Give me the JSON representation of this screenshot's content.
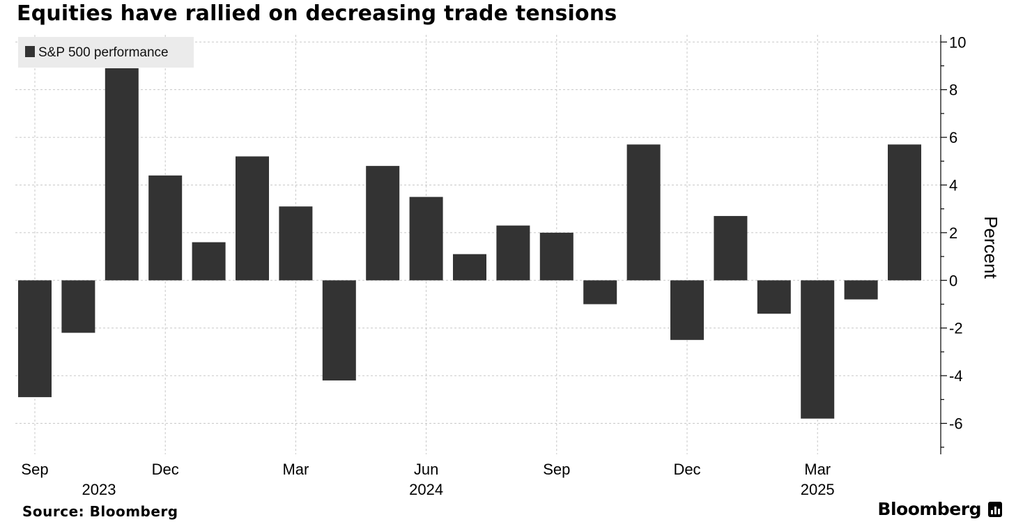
{
  "chart_data": {
    "type": "bar",
    "title": "Equities have rallied on decreasing trade tensions",
    "legend": {
      "label": "S&P 500 performance",
      "position": "top-left",
      "color": "#333333"
    },
    "ylabel": "Percent",
    "ylim": [
      -7.3,
      10.3
    ],
    "yticks": [
      10,
      8,
      6,
      4,
      2,
      0,
      -2,
      -4,
      -6
    ],
    "grid": true,
    "categories": [
      "Sep 2023",
      "Oct 2023",
      "Nov 2023",
      "Dec 2023",
      "Jan 2024",
      "Feb 2024",
      "Mar 2024",
      "Apr 2024",
      "May 2024",
      "Jun 2024",
      "Jul 2024",
      "Aug 2024",
      "Sep 2024",
      "Oct 2024",
      "Nov 2024",
      "Dec 2024",
      "Jan 2025",
      "Feb 2025",
      "Mar 2025",
      "Apr 2025",
      "May 2025"
    ],
    "values": [
      -4.9,
      -2.2,
      8.9,
      4.4,
      1.6,
      5.2,
      3.1,
      -4.2,
      4.8,
      3.5,
      1.1,
      2.3,
      2.0,
      -1.0,
      5.7,
      -2.5,
      2.7,
      -1.4,
      -5.8,
      -0.8,
      5.7
    ],
    "xticks": [
      {
        "index": 0,
        "label": "Sep",
        "year": "2023"
      },
      {
        "index": 3,
        "label": "Dec",
        "year": ""
      },
      {
        "index": 6,
        "label": "Mar",
        "year": ""
      },
      {
        "index": 9,
        "label": "Jun",
        "year": "2024"
      },
      {
        "index": 12,
        "label": "Sep",
        "year": ""
      },
      {
        "index": 15,
        "label": "Dec",
        "year": ""
      },
      {
        "index": 18,
        "label": "Mar",
        "year": "2025"
      }
    ]
  },
  "source": "Source: Bloomberg",
  "brand": "Bloomberg"
}
